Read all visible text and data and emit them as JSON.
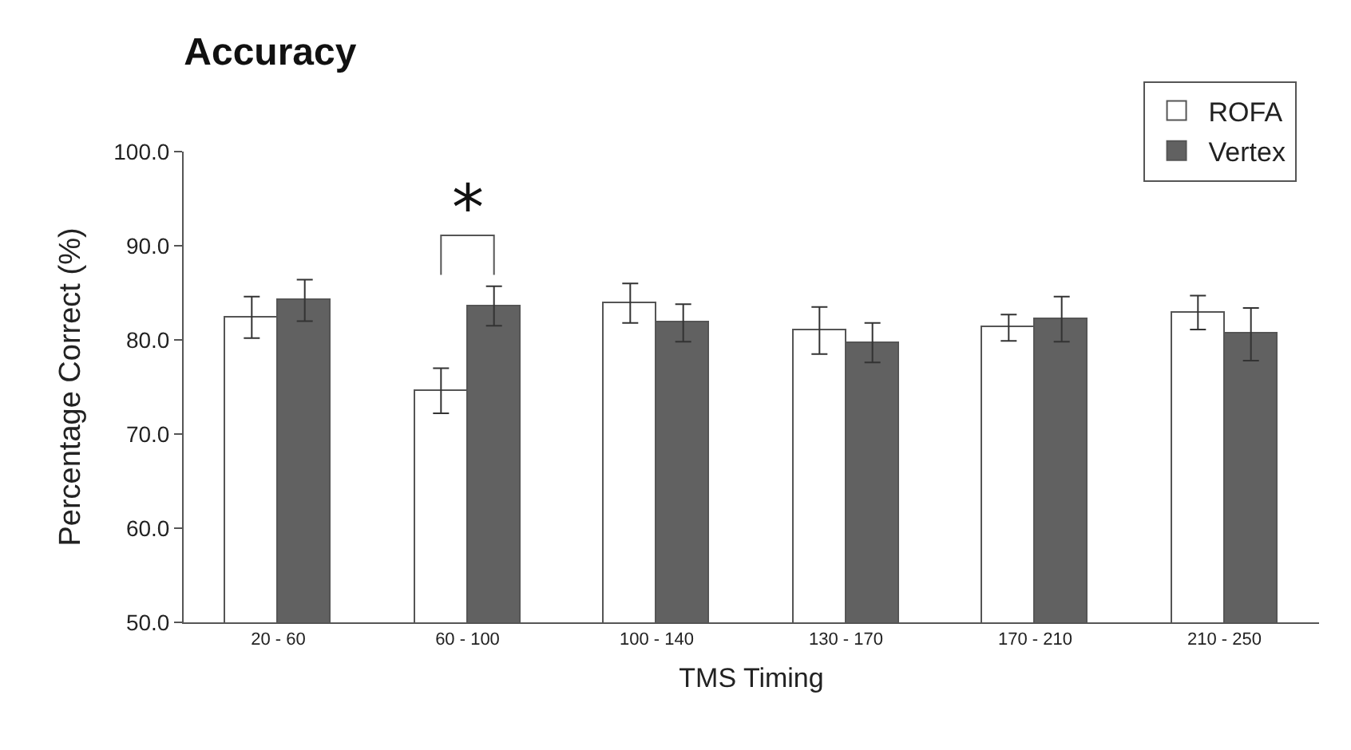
{
  "chart_data": {
    "type": "bar",
    "title": "Accuracy",
    "xlabel": "TMS Timing",
    "ylabel": "Percentage Correct (%)",
    "categories": [
      "20 - 60",
      "60 - 100",
      "100 - 140",
      "130 - 170",
      "170 - 210",
      "210 - 250"
    ],
    "series": [
      {
        "name": "ROFA",
        "color": "#ffffff",
        "values": [
          82.4,
          74.6,
          83.9,
          81.0,
          81.3,
          82.9
        ],
        "errors": [
          2.2,
          2.4,
          2.1,
          2.5,
          1.4,
          1.8
        ]
      },
      {
        "name": "Vertex",
        "color": "#616161",
        "values": [
          84.2,
          83.6,
          81.8,
          79.7,
          82.2,
          80.6
        ],
        "errors": [
          2.2,
          2.1,
          2.0,
          2.1,
          2.4,
          2.8
        ]
      }
    ],
    "ylim": [
      50,
      100
    ],
    "yticks": [
      {
        "value": 50,
        "label": "50.0"
      },
      {
        "value": 60,
        "label": "60.0"
      },
      {
        "value": 70,
        "label": "70.0"
      },
      {
        "value": 80,
        "label": "80.0"
      },
      {
        "value": 90,
        "label": "90.0"
      },
      {
        "value": 100,
        "label": "100.0"
      }
    ],
    "annotations": [
      "*"
    ],
    "legend": "top right",
    "grid": false
  }
}
